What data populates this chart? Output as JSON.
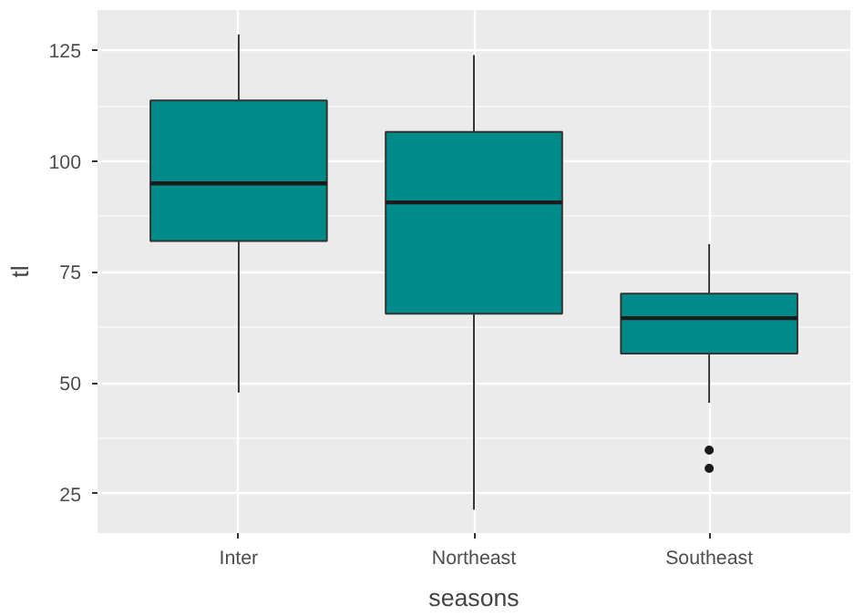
{
  "chart_data": {
    "type": "box",
    "xlabel": "seasons",
    "ylabel": "tl",
    "categories": [
      "Inter",
      "Northeast",
      "Southeast"
    ],
    "boxes": [
      {
        "low": 47.8,
        "q1": 82.0,
        "median": 95.0,
        "q3": 113.7,
        "high": 128.6
      },
      {
        "low": 21.4,
        "q1": 65.6,
        "median": 90.7,
        "q3": 106.6,
        "high": 123.9
      },
      {
        "low": 45.5,
        "q1": 56.6,
        "median": 64.6,
        "q3": 70.1,
        "high": 81.3,
        "outliers": [
          34.8,
          30.7
        ]
      }
    ],
    "color": "#008b8b",
    "ylim": [
      16.1,
      134.1
    ],
    "yticks": [
      25,
      50,
      75,
      100,
      125
    ],
    "grid": true
  }
}
